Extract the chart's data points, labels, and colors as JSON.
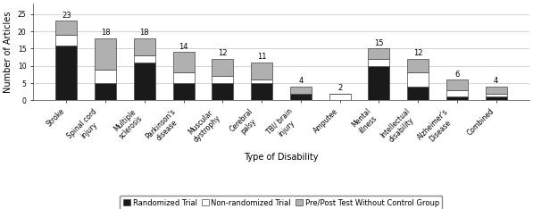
{
  "categories": [
    "Stroke",
    "Spinal cord\ninjury",
    "Multiple\nsclerosis",
    "Parkinson's\ndisease",
    "Muscular\ndystrophy",
    "Cerebral\npalsy",
    "TBI/ brain\ninjury",
    "Amputee",
    "Mental\nillness",
    "Intellectual\ndisability",
    "Alzheimer's\nDisease",
    "Combined"
  ],
  "totals": [
    23,
    18,
    18,
    14,
    12,
    11,
    4,
    2,
    15,
    12,
    6,
    4
  ],
  "randomized": [
    16,
    5,
    11,
    5,
    5,
    5,
    2,
    0,
    10,
    4,
    1,
    1
  ],
  "non_randomized": [
    3,
    4,
    2,
    3,
    2,
    1,
    0,
    2,
    2,
    4,
    2,
    1
  ],
  "pre_post": [
    4,
    9,
    5,
    6,
    5,
    5,
    2,
    0,
    3,
    4,
    3,
    2
  ],
  "color_randomized": "#1a1a1a",
  "color_non_randomized": "#ffffff",
  "color_pre_post": "#b0b0b0",
  "bar_edge_color": "#444444",
  "bg_color": "#ffffff",
  "ylabel": "Number of Articles",
  "xlabel": "Type of Disability",
  "ylim": [
    0,
    28
  ],
  "yticks": [
    0,
    5,
    10,
    15,
    20,
    25
  ],
  "legend_labels": [
    "Randomized Trial",
    "Non-randomized Trial",
    "Pre/Post Test Without Control Group"
  ],
  "total_fontsize": 6.0,
  "axis_label_fontsize": 7.0,
  "tick_fontsize": 5.5,
  "legend_fontsize": 6.0,
  "bar_width": 0.55
}
